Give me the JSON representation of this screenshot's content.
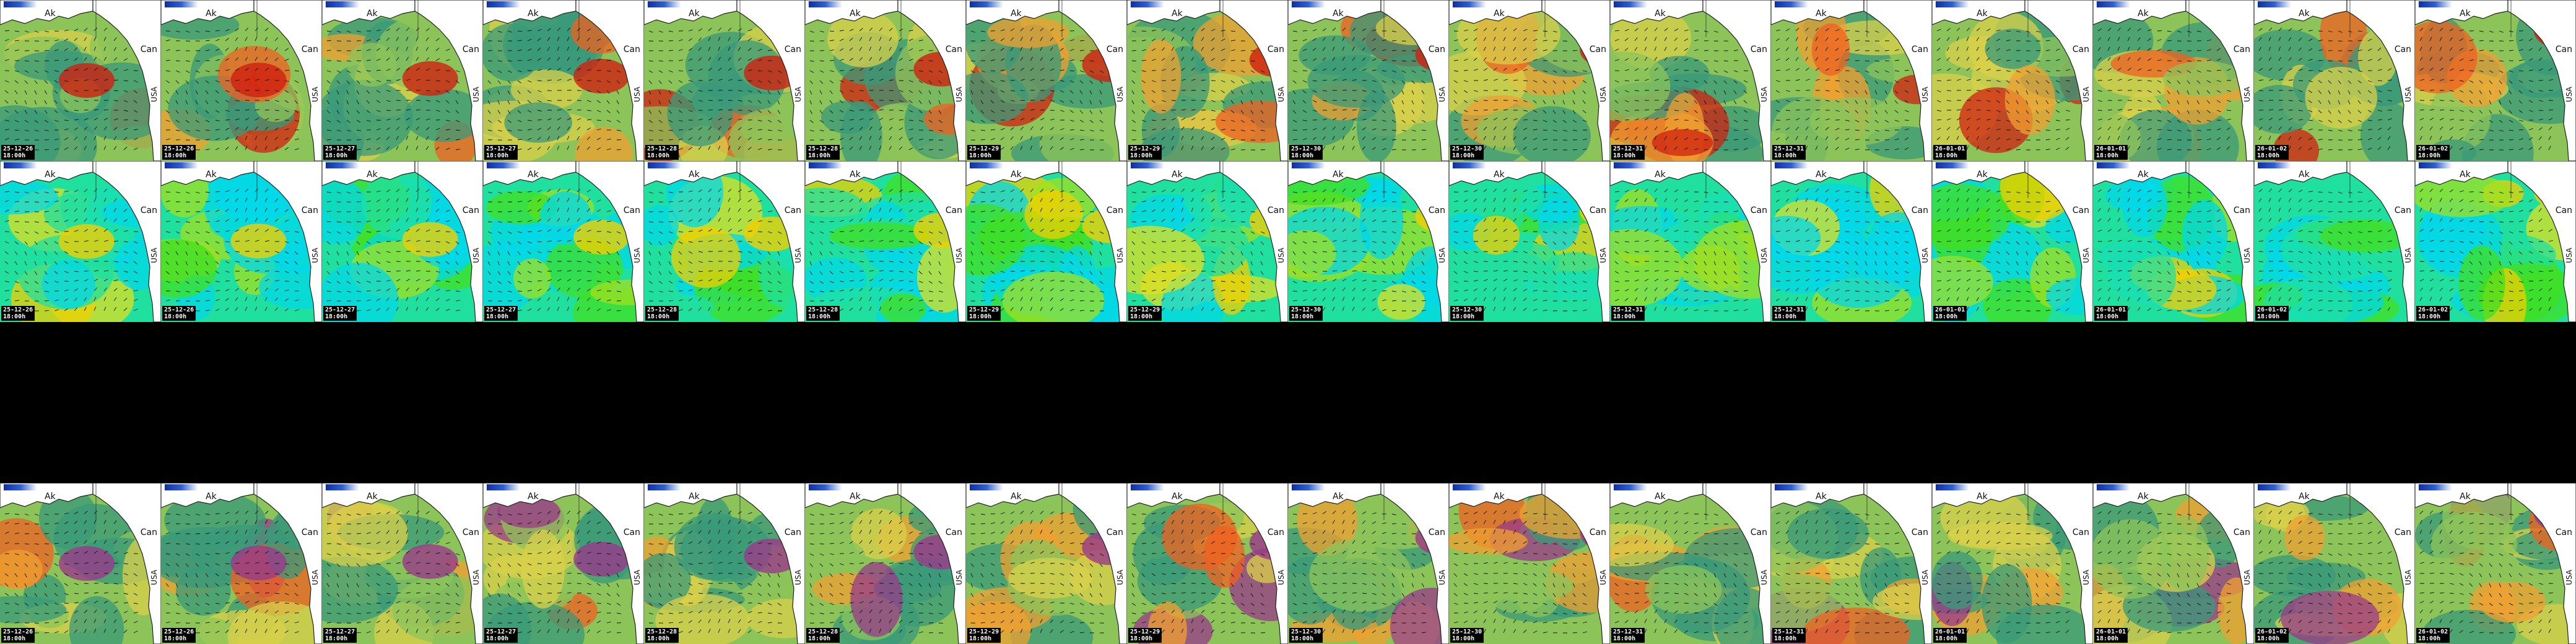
{
  "map": {
    "labels": {
      "ak": "Ak",
      "can": "Can",
      "usa": "USA"
    },
    "time_label": "18:00h",
    "dates": [
      "25-12-26",
      "25-12-26",
      "25-12-27",
      "25-12-27",
      "25-12-28",
      "25-12-28",
      "25-12-29",
      "25-12-29",
      "25-12-30",
      "25-12-30",
      "25-12-31",
      "25-12-31",
      "26-01-01",
      "26-01-01",
      "26-01-02",
      "26-01-02"
    ],
    "rows": [
      {
        "name": "row-wave-height",
        "palette": "warm"
      },
      {
        "name": "row-wave-period",
        "palette": "cool"
      },
      {
        "name": "row-empty",
        "palette": "none"
      },
      {
        "name": "row-wind-wave",
        "palette": "warm2"
      }
    ],
    "colors": {
      "land": "#ffffff",
      "coast": "#222222",
      "arrow": "#111111",
      "warm": [
        "#3a9a7a",
        "#8cc45a",
        "#d9d04a",
        "#f0a030",
        "#f06020",
        "#d02010"
      ],
      "cool": [
        "#00d8e8",
        "#20e0a0",
        "#40e020",
        "#a0e020",
        "#e0e020",
        "#f0d000"
      ],
      "warm2": [
        "#3a9a7a",
        "#8cc45a",
        "#d9d04a",
        "#f0a030",
        "#f06020",
        "#9a3a8a"
      ]
    }
  }
}
